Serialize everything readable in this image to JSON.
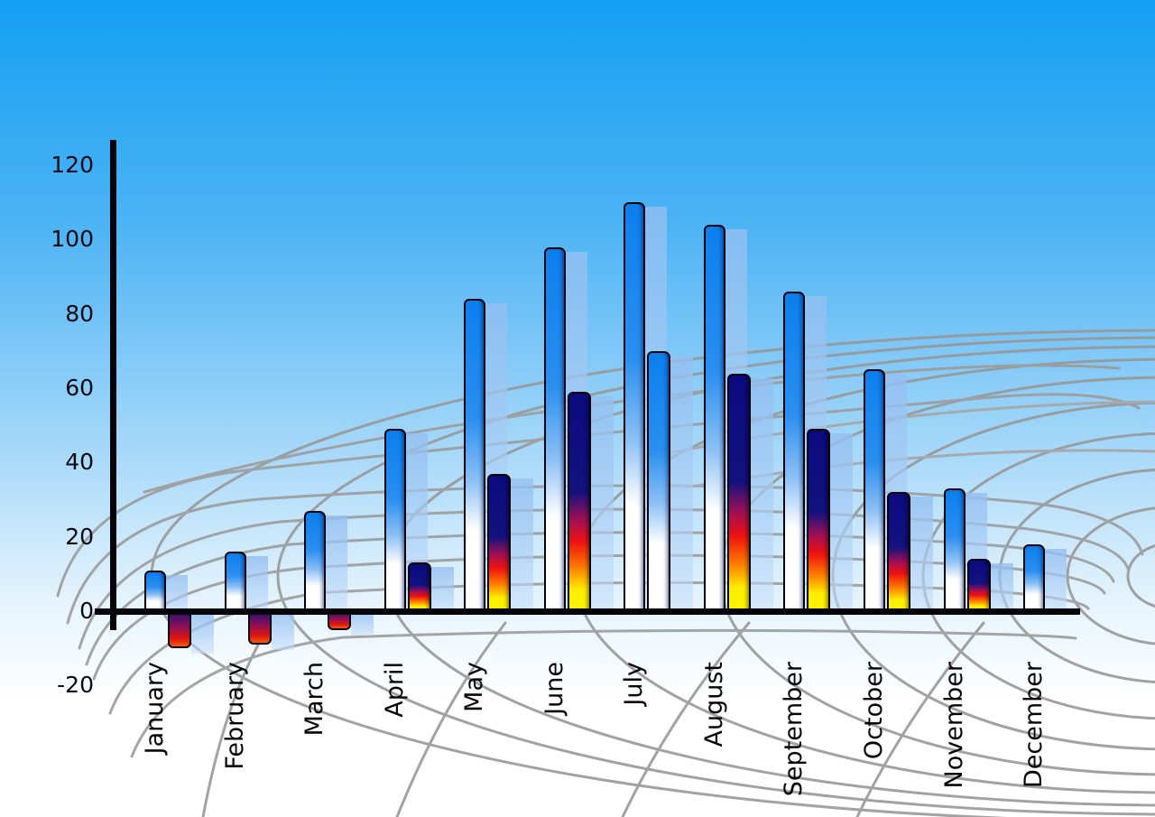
{
  "chart_data": {
    "type": "bar",
    "title": "",
    "xlabel": "",
    "ylabel": "",
    "categories": [
      "January",
      "February",
      "March",
      "April",
      "May",
      "June",
      "July",
      "August",
      "September",
      "October",
      "November",
      "December"
    ],
    "series": [
      {
        "name": "primary-blue-bars",
        "values": [
          11,
          16,
          27,
          49,
          84,
          98,
          110,
          104,
          86,
          65,
          33,
          18
        ]
      },
      {
        "name": "secondary-fire-bars",
        "values": [
          -10,
          -9,
          -5,
          13,
          37,
          59,
          70,
          64,
          49,
          32,
          14,
          null
        ]
      }
    ],
    "series2_render_styles": [
      "fire",
      "fire",
      "fire",
      "fire",
      "fire",
      "fire",
      "blue",
      "fire",
      "fire",
      "fire",
      "fire",
      "none"
    ],
    "y_ticks": [
      120,
      100,
      80,
      60,
      40,
      20,
      0,
      -20
    ],
    "ylim": [
      -20,
      130
    ],
    "legend": "none",
    "grid": "curved gray perspective web in background",
    "x_label_orientation": "vertical-bottom-to-top"
  },
  "colors": {
    "sky_top": "#149ff2",
    "sky_bottom": "#ffffff",
    "bar_blue_top": "#0c7fee",
    "bar_blue_bottom": "#ffffff",
    "fire_navy": "#0b0b80",
    "fire_red": "#ee1111",
    "fire_yellow": "#fdf500",
    "echo_bar_blue": "#a9c9ef",
    "grid_line": "#989898",
    "axis": "#04040a",
    "label_text": "#0a0a12"
  }
}
